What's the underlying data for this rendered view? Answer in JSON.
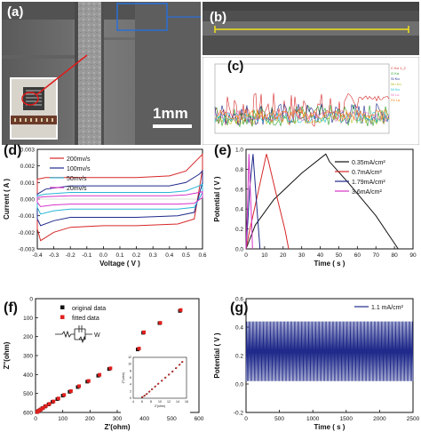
{
  "panels": {
    "a": {
      "label": "(a)",
      "scale_bar": "1mm"
    },
    "b": {
      "label": "(b)"
    },
    "c": {
      "label": "(c)",
      "legend": [
        "C Kα 1_2",
        "O Kα",
        "Si Kα",
        "Mn Kα",
        "Ni Kα",
        "Ni Lα",
        "Fe Lα"
      ]
    },
    "d": {
      "label": "(d)"
    },
    "e": {
      "label": "(e)"
    },
    "f": {
      "label": "(f)",
      "circuit_W": "W"
    },
    "g": {
      "label": "(g)"
    }
  },
  "chart_data": [
    {
      "id": "d",
      "type": "line",
      "xlabel": "Voltage ( V )",
      "ylabel": "Current ( A )",
      "xlim": [
        -0.4,
        0.6
      ],
      "ylim": [
        -0.003,
        0.003
      ],
      "xticks": [
        "-0.4",
        "-0.3",
        "-0.2",
        "-0.1",
        "0.0",
        "0.1",
        "0.2",
        "0.3",
        "0.4",
        "0.5",
        "0.6"
      ],
      "yticks": [
        "0.003",
        "0.002",
        "0.001",
        "0.000",
        "-0.001",
        "-0.002",
        "-0.003"
      ],
      "legend_position": "top-left",
      "series": [
        {
          "name": "200mv/s",
          "color": "#d62728",
          "upper": [
            [
              -0.4,
              0.0012
            ],
            [
              -0.35,
              0.0013
            ],
            [
              -0.2,
              0.0013
            ],
            [
              0.0,
              0.0013
            ],
            [
              0.2,
              0.0013
            ],
            [
              0.4,
              0.0014
            ],
            [
              0.5,
              0.0017
            ],
            [
              0.58,
              0.0025
            ],
            [
              0.6,
              0.0027
            ]
          ],
          "lower": [
            [
              0.6,
              0.0018
            ],
            [
              0.55,
              -0.0012
            ],
            [
              0.45,
              -0.0015
            ],
            [
              0.2,
              -0.0016
            ],
            [
              0.0,
              -0.0016
            ],
            [
              -0.2,
              -0.0017
            ],
            [
              -0.3,
              -0.002
            ],
            [
              -0.38,
              -0.0025
            ],
            [
              -0.4,
              -0.0018
            ]
          ]
        },
        {
          "name": "100mv/s",
          "color": "#1f2a8a",
          "upper": [
            [
              -0.4,
              0.0003
            ],
            [
              -0.35,
              0.0006
            ],
            [
              -0.2,
              0.0008
            ],
            [
              0.0,
              0.0008
            ],
            [
              0.2,
              0.0008
            ],
            [
              0.4,
              0.0008
            ],
            [
              0.5,
              0.001
            ],
            [
              0.58,
              0.0015
            ],
            [
              0.6,
              0.0017
            ]
          ],
          "lower": [
            [
              0.6,
              0.001
            ],
            [
              0.55,
              -0.0008
            ],
            [
              0.45,
              -0.001
            ],
            [
              0.2,
              -0.0011
            ],
            [
              0.0,
              -0.0011
            ],
            [
              -0.2,
              -0.0011
            ],
            [
              -0.3,
              -0.0013
            ],
            [
              -0.38,
              -0.0016
            ],
            [
              -0.4,
              -0.0012
            ]
          ]
        },
        {
          "name": "50mv/s",
          "color": "#29b6d6",
          "upper": [
            [
              -0.4,
              0.0002
            ],
            [
              -0.35,
              0.0003
            ],
            [
              -0.2,
              0.0004
            ],
            [
              0.0,
              0.0004
            ],
            [
              0.2,
              0.0004
            ],
            [
              0.4,
              0.0004
            ],
            [
              0.5,
              0.0005
            ],
            [
              0.58,
              0.0008
            ],
            [
              0.6,
              0.0009
            ]
          ],
          "lower": [
            [
              0.6,
              0.0004
            ],
            [
              0.55,
              -0.0005
            ],
            [
              0.45,
              -0.0006
            ],
            [
              0.2,
              -0.0006
            ],
            [
              0.0,
              -0.0006
            ],
            [
              -0.2,
              -0.0006
            ],
            [
              -0.3,
              -0.0007
            ],
            [
              -0.38,
              -0.0009
            ],
            [
              -0.4,
              -0.0005
            ]
          ]
        },
        {
          "name": "20mv/s",
          "color": "#d633c8",
          "upper": [
            [
              -0.4,
              0.0001
            ],
            [
              -0.35,
              0.00015
            ],
            [
              -0.2,
              0.0002
            ],
            [
              0.0,
              0.0002
            ],
            [
              0.2,
              0.0002
            ],
            [
              0.4,
              0.0002
            ],
            [
              0.5,
              0.00025
            ],
            [
              0.58,
              0.0004
            ],
            [
              0.6,
              0.00045
            ]
          ],
          "lower": [
            [
              0.6,
              0.0001
            ],
            [
              0.55,
              -0.00025
            ],
            [
              0.45,
              -0.0003
            ],
            [
              0.2,
              -0.0003
            ],
            [
              0.0,
              -0.0003
            ],
            [
              -0.2,
              -0.0003
            ],
            [
              -0.3,
              -0.00035
            ],
            [
              -0.38,
              -0.00045
            ],
            [
              -0.4,
              -0.0002
            ]
          ]
        }
      ]
    },
    {
      "id": "e",
      "type": "line",
      "xlabel": "Time ( s )",
      "ylabel": "Potential ( V )",
      "xlim": [
        0,
        90
      ],
      "ylim": [
        0,
        1.05
      ],
      "xticks": [
        "0",
        "10",
        "20",
        "30",
        "40",
        "50",
        "60",
        "70",
        "80",
        "90"
      ],
      "yticks": [
        "1.0",
        "0.8",
        "0.6",
        "0.4",
        "0.2",
        "0.0"
      ],
      "legend_position": "top-right",
      "series": [
        {
          "name": "0.35mA/cm²",
          "color": "#111111",
          "points": [
            [
              0,
              0
            ],
            [
              5,
              0.25
            ],
            [
              15,
              0.52
            ],
            [
              30,
              0.8
            ],
            [
              43,
              1.0
            ],
            [
              45,
              0.92
            ],
            [
              55,
              0.7
            ],
            [
              70,
              0.35
            ],
            [
              82,
              0
            ]
          ]
        },
        {
          "name": "0.7mA/cm²",
          "color": "#d62728",
          "points": [
            [
              0,
              0
            ],
            [
              2,
              0.2
            ],
            [
              6,
              0.55
            ],
            [
              11,
              1.0
            ],
            [
              12,
              0.93
            ],
            [
              16,
              0.6
            ],
            [
              21,
              0.2
            ],
            [
              23,
              0
            ]
          ]
        },
        {
          "name": "1.79mA/cm²",
          "color": "#1f2a8a",
          "points": [
            [
              0,
              0
            ],
            [
              1,
              0.3
            ],
            [
              2,
              0.65
            ],
            [
              3.8,
              1.0
            ],
            [
              4.3,
              0.85
            ],
            [
              6,
              0.4
            ],
            [
              7.5,
              0
            ]
          ]
        },
        {
          "name": "3.6mA/cm²",
          "color": "#d633c8",
          "points": [
            [
              0,
              0
            ],
            [
              0.7,
              0.4
            ],
            [
              1.6,
              1.0
            ],
            [
              2,
              0.75
            ],
            [
              3,
              0.3
            ],
            [
              3.5,
              0
            ]
          ]
        }
      ]
    },
    {
      "id": "f",
      "type": "scatter",
      "xlabel": "Z'(ohm)",
      "ylabel": "Z''(ohm)",
      "xlim": [
        0,
        600
      ],
      "ylim": [
        0,
        650
      ],
      "xticks": [
        "0",
        "100",
        "200",
        "300",
        "400",
        "500",
        "600"
      ],
      "yticks": [
        "0",
        "100",
        "200",
        "300",
        "400",
        "500",
        "600"
      ],
      "legend_position": "top-left",
      "series": [
        {
          "name": "original data",
          "color": "#111111",
          "marker": "square",
          "points": [
            [
              5,
              2
            ],
            [
              8,
              5
            ],
            [
              12,
              10
            ],
            [
              18,
              16
            ],
            [
              25,
              24
            ],
            [
              35,
              34
            ],
            [
              48,
              46
            ],
            [
              62,
              60
            ],
            [
              80,
              76
            ],
            [
              100,
              96
            ],
            [
              125,
              118
            ],
            [
              155,
              145
            ],
            [
              190,
              176
            ],
            [
              230,
              210
            ],
            [
              270,
              248
            ],
            [
              320,
              290
            ],
            [
              375,
              360
            ],
            [
              395,
              455
            ],
            [
              455,
              510
            ],
            [
              530,
              580
            ]
          ]
        },
        {
          "name": "fitted data",
          "color": "#e0201e",
          "marker": "square",
          "points": [
            [
              6,
              3
            ],
            [
              10,
              7
            ],
            [
              14,
              12
            ],
            [
              20,
              18
            ],
            [
              28,
              26
            ],
            [
              38,
              37
            ],
            [
              51,
              49
            ],
            [
              66,
              63
            ],
            [
              84,
              80
            ],
            [
              105,
              100
            ],
            [
              130,
              122
            ],
            [
              160,
              150
            ],
            [
              195,
              180
            ],
            [
              235,
              215
            ],
            [
              275,
              252
            ],
            [
              325,
              295
            ],
            [
              380,
              365
            ],
            [
              398,
              458
            ],
            [
              458,
              512
            ],
            [
              533,
              585
            ]
          ]
        }
      ],
      "inset": {
        "xlabel": "Z'(ohm)",
        "ylabel": "Z''(ohm)",
        "xlim": [
          4,
          16
        ],
        "ylim": [
          0,
          12
        ],
        "xticks": [
          "4",
          "6",
          "8",
          "10",
          "12",
          "14",
          "16"
        ],
        "yticks": [
          "0",
          "2",
          "4",
          "6",
          "8",
          "10",
          "12"
        ],
        "series": [
          {
            "name": "original data",
            "color": "#111111",
            "points": [
              [
                6,
                0.3
              ],
              [
                6.5,
                0.7
              ],
              [
                7,
                1.2
              ],
              [
                7.6,
                1.9
              ],
              [
                8.2,
                2.6
              ],
              [
                8.9,
                3.4
              ],
              [
                9.6,
                4.2
              ],
              [
                10.4,
                5.1
              ],
              [
                11.2,
                6.0
              ],
              [
                12,
                6.9
              ],
              [
                12.8,
                7.8
              ],
              [
                13.6,
                8.8
              ],
              [
                14.4,
                9.8
              ],
              [
                15,
                10.6
              ]
            ]
          },
          {
            "name": "fitted data",
            "color": "#e0201e",
            "points": [
              [
                6.1,
                0.4
              ],
              [
                6.6,
                0.8
              ],
              [
                7.1,
                1.3
              ],
              [
                7.7,
                2.0
              ],
              [
                8.3,
                2.7
              ],
              [
                9.0,
                3.5
              ],
              [
                9.7,
                4.3
              ],
              [
                10.5,
                5.2
              ],
              [
                11.3,
                6.1
              ],
              [
                12.1,
                7.0
              ],
              [
                12.9,
                7.9
              ],
              [
                13.7,
                8.9
              ],
              [
                14.5,
                9.9
              ],
              [
                15.1,
                10.7
              ]
            ]
          }
        ]
      }
    },
    {
      "id": "g",
      "type": "line",
      "xlabel": "Time ( s )",
      "ylabel": "Potential ( V )",
      "xlim": [
        0,
        2500
      ],
      "ylim": [
        -0.2,
        0.6
      ],
      "xticks": [
        "0",
        "500",
        "1000",
        "1500",
        "2000",
        "2500"
      ],
      "yticks": [
        "0.6",
        "0.4",
        "0.2",
        "0.0",
        "-0.2"
      ],
      "legend_position": "top-right",
      "series": [
        {
          "name": "1.1 mA/cm²",
          "color": "#1f2a8a",
          "min": 0.02,
          "max": 0.44,
          "cycles": 140
        }
      ]
    }
  ]
}
